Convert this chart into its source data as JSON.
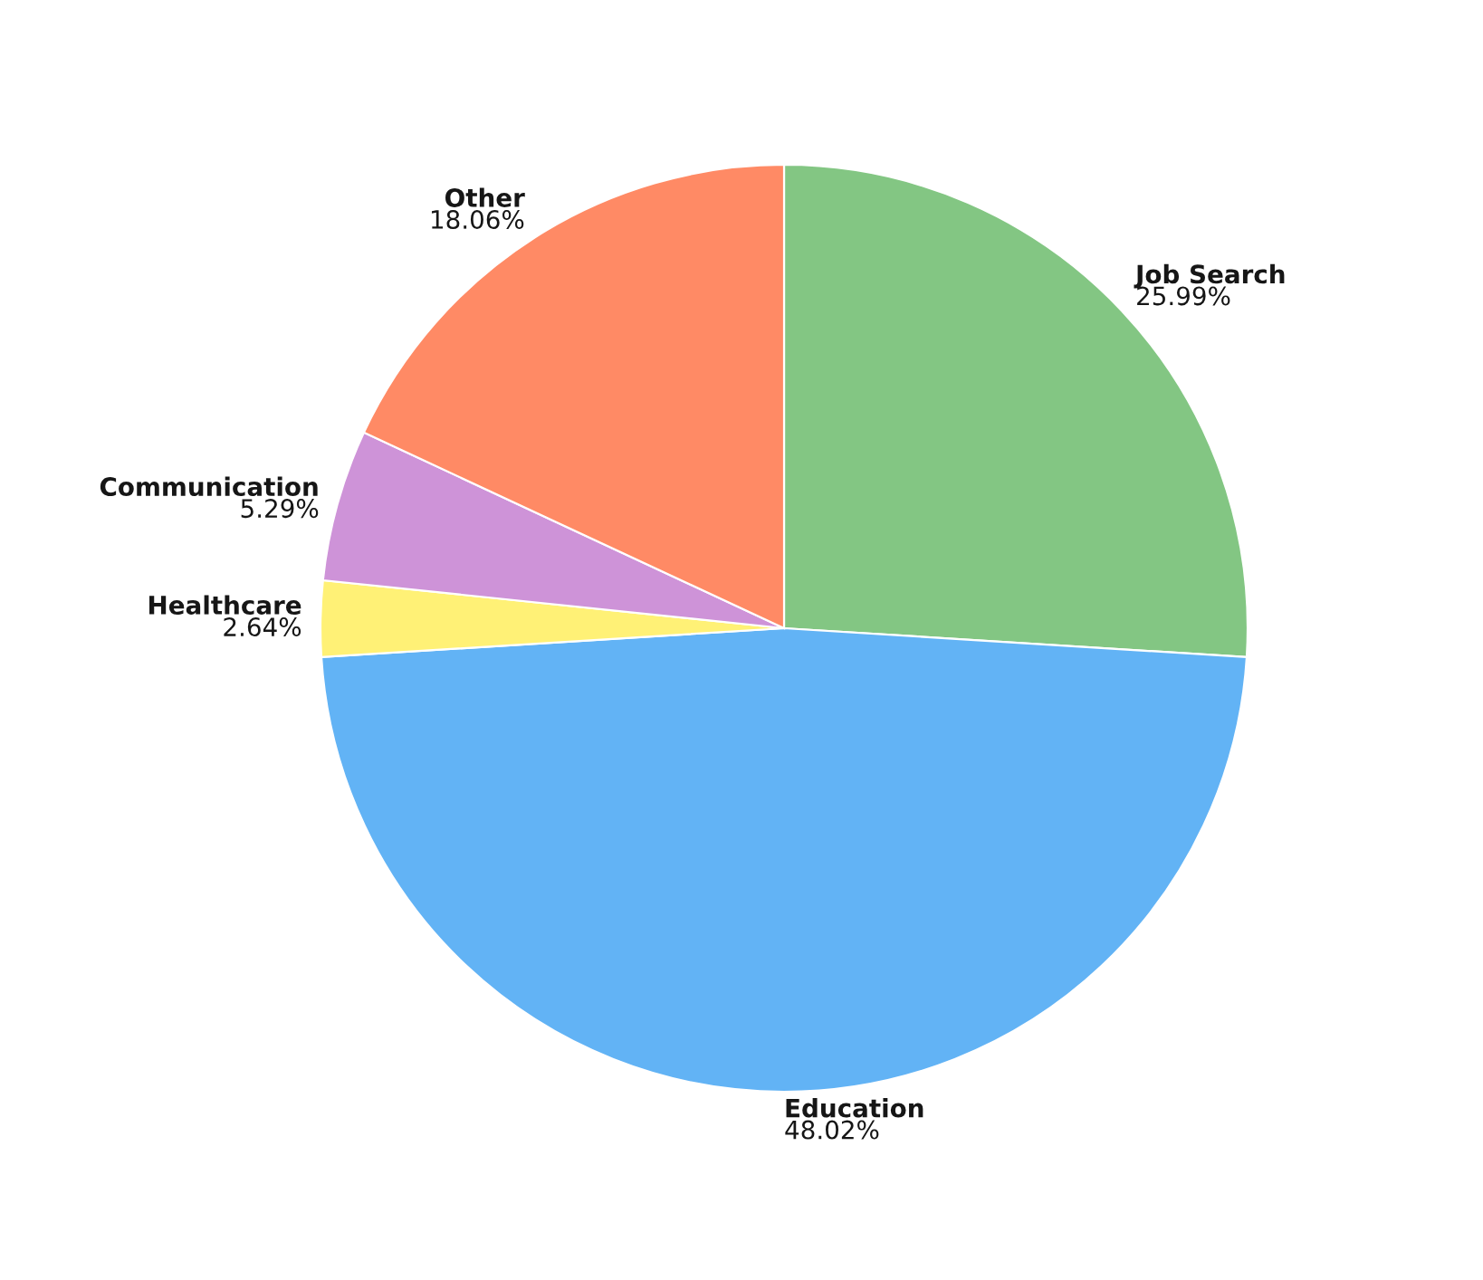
{
  "chart_data": {
    "type": "pie",
    "categories": [
      "Job Search",
      "Education",
      "Healthcare",
      "Communication",
      "Other"
    ],
    "values": [
      25.99,
      48.02,
      2.64,
      5.29,
      18.06
    ],
    "value_labels": [
      "25.99%",
      "48.02%",
      "2.64%",
      "5.29%",
      "18.06%"
    ],
    "colors": [
      "#83c683",
      "#62b3f5",
      "#fff176",
      "#ce93d8",
      "#ff8a65"
    ]
  }
}
